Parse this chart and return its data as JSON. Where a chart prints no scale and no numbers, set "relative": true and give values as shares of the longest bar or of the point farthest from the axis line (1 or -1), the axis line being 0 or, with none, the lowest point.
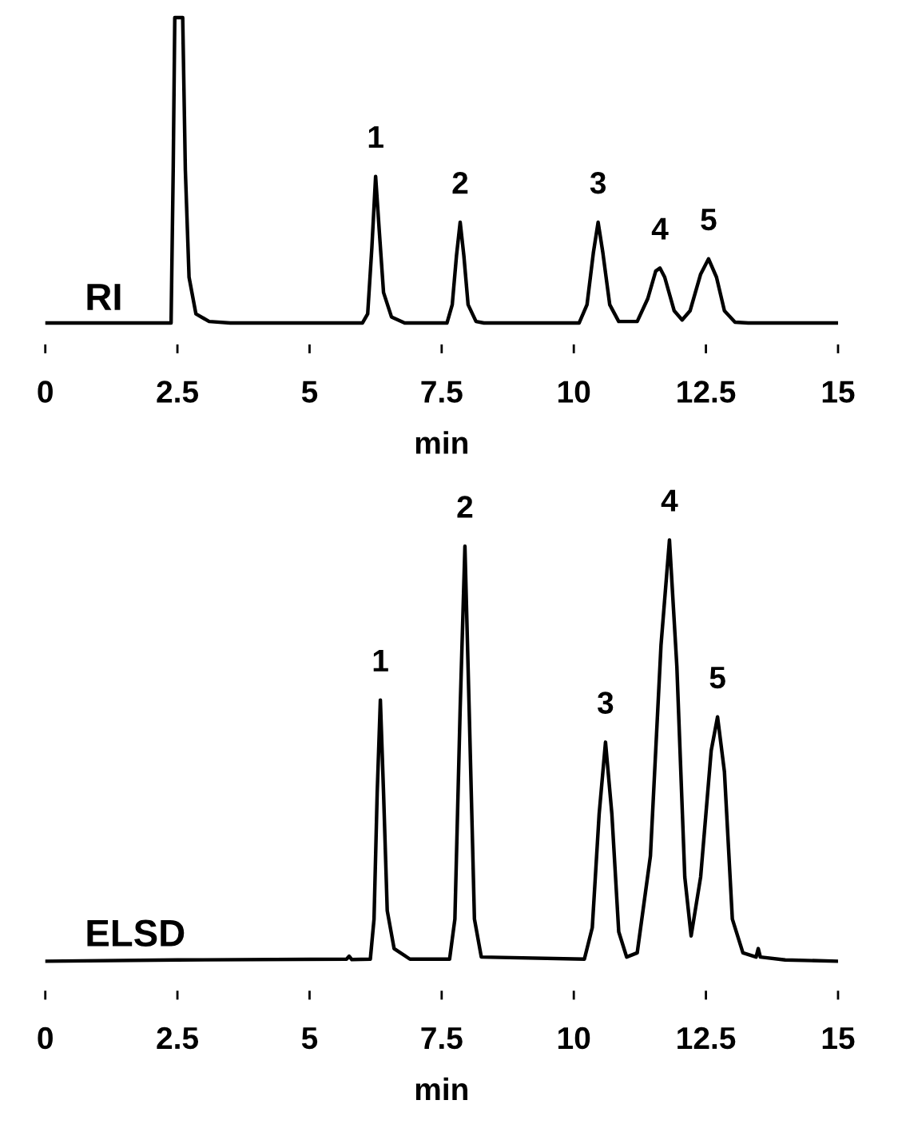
{
  "chart_data": [
    {
      "type": "line",
      "title": "RI",
      "xlabel": "min",
      "relative": true,
      "xlim": [
        0,
        15
      ],
      "xticks": [
        0,
        2.5,
        5,
        7.5,
        10,
        12.5,
        15
      ],
      "grid": false,
      "legend": false,
      "tick_labels": "x",
      "series": [
        {
          "color": "#000000",
          "x": [
            0,
            2.38,
            2.42,
            2.45,
            2.6,
            2.65,
            2.72,
            2.85,
            3.1,
            3.5,
            6.0,
            6.1,
            6.18,
            6.25,
            6.32,
            6.4,
            6.55,
            6.8,
            7.6,
            7.7,
            7.78,
            7.85,
            7.92,
            8.0,
            8.15,
            8.3,
            10.1,
            10.25,
            10.37,
            10.46,
            10.55,
            10.68,
            10.85,
            11.2,
            11.4,
            11.55,
            11.63,
            11.72,
            11.9,
            12.05,
            12.2,
            12.4,
            12.55,
            12.7,
            12.85,
            13.05,
            13.3,
            15
          ],
          "values": [
            0,
            0,
            0.5,
            1,
            1,
            0.5,
            0.15,
            0.03,
            0.005,
            0,
            0,
            0.03,
            0.25,
            0.48,
            0.3,
            0.1,
            0.02,
            0,
            0,
            0.06,
            0.22,
            0.33,
            0.22,
            0.06,
            0.005,
            0,
            0,
            0.06,
            0.23,
            0.33,
            0.23,
            0.06,
            0.005,
            0.005,
            0.08,
            0.17,
            0.18,
            0.15,
            0.04,
            0.01,
            0.04,
            0.16,
            0.21,
            0.15,
            0.04,
            0.003,
            0,
            0
          ]
        }
      ],
      "annotations": [
        {
          "text": "1",
          "x": 6.25,
          "y": 0.48
        },
        {
          "text": "2",
          "x": 7.85,
          "y": 0.33
        },
        {
          "text": "3",
          "x": 10.46,
          "y": 0.33
        },
        {
          "text": "4",
          "x": 11.63,
          "y": 0.18
        },
        {
          "text": "5",
          "x": 12.55,
          "y": 0.21
        }
      ]
    },
    {
      "type": "line",
      "title": "ELSD",
      "xlabel": "min",
      "relative": true,
      "xlim": [
        0,
        15
      ],
      "xticks": [
        0,
        2.5,
        5,
        7.5,
        10,
        12.5,
        15
      ],
      "grid": false,
      "legend": false,
      "tick_labels": "x",
      "series": [
        {
          "color": "#000000",
          "x": [
            0,
            2.5,
            5.7,
            5.75,
            5.8,
            6.15,
            6.22,
            6.28,
            6.34,
            6.4,
            6.47,
            6.6,
            6.9,
            7.65,
            7.75,
            7.85,
            7.94,
            8.02,
            8.12,
            8.25,
            10.2,
            10.35,
            10.48,
            10.6,
            10.72,
            10.85,
            11.0,
            11.2,
            11.45,
            11.65,
            11.81,
            11.95,
            12.1,
            12.22,
            12.4,
            12.6,
            12.72,
            12.85,
            13.0,
            13.2,
            13.45,
            13.49,
            13.53,
            14,
            15
          ],
          "values": [
            0,
            0.003,
            0.005,
            0.012,
            0.004,
            0.005,
            0.1,
            0.4,
            0.62,
            0.4,
            0.12,
            0.03,
            0.005,
            0.005,
            0.1,
            0.6,
            0.985,
            0.6,
            0.1,
            0.01,
            0.005,
            0.08,
            0.35,
            0.52,
            0.35,
            0.07,
            0.01,
            0.02,
            0.25,
            0.75,
            1.0,
            0.7,
            0.2,
            0.06,
            0.2,
            0.5,
            0.58,
            0.45,
            0.1,
            0.02,
            0.01,
            0.03,
            0.01,
            0.003,
            0
          ]
        }
      ],
      "annotations": [
        {
          "text": "1",
          "x": 6.34,
          "y": 0.62
        },
        {
          "text": "2",
          "x": 7.94,
          "y": 0.985
        },
        {
          "text": "3",
          "x": 10.6,
          "y": 0.52
        },
        {
          "text": "4",
          "x": 11.81,
          "y": 1.0
        },
        {
          "text": "5",
          "x": 12.72,
          "y": 0.58
        }
      ]
    }
  ]
}
